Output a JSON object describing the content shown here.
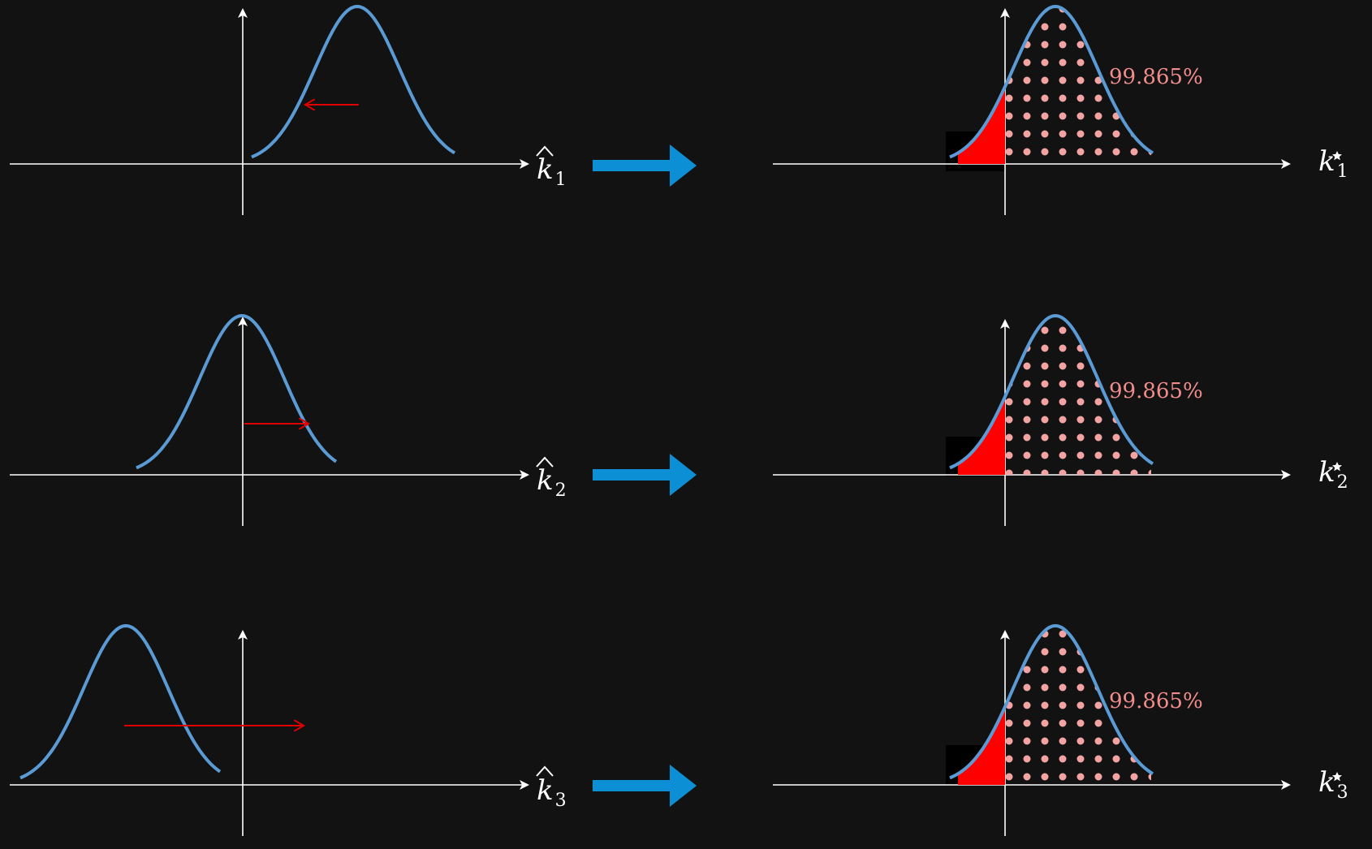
{
  "colors": {
    "background": "#121212",
    "axis": "#ffffff",
    "curve": "#5b9bd5",
    "shift_arrow": "#e00000",
    "transform_arrow": "#0d8fd6",
    "tail_fill": "#ff0000",
    "dots": "#f4a3a3",
    "percent_text": "#f08c8c"
  },
  "rows": [
    {
      "left": {
        "axis_label": "k",
        "subscript": "1",
        "accent": "hat",
        "shift_direction": "left"
      },
      "right": {
        "axis_label": "k",
        "subscript": "1",
        "accent": "star",
        "percent": "99.865%"
      }
    },
    {
      "left": {
        "axis_label": "k",
        "subscript": "2",
        "accent": "hat",
        "shift_direction": "right"
      },
      "right": {
        "axis_label": "k",
        "subscript": "2",
        "accent": "star",
        "percent": "99.865%"
      }
    },
    {
      "left": {
        "axis_label": "k",
        "subscript": "3",
        "accent": "hat",
        "shift_direction": "right"
      },
      "right": {
        "axis_label": "k",
        "subscript": "3",
        "accent": "star",
        "percent": "99.865%"
      }
    }
  ],
  "icons": {
    "transform_arrow": "arrow-right-icon",
    "shift_arrow": "arrow-icon"
  }
}
